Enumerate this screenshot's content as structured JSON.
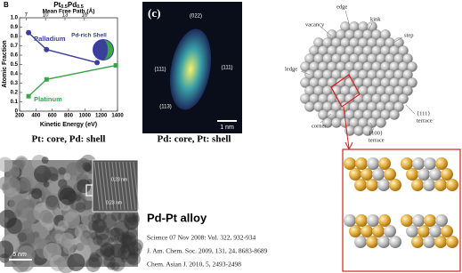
{
  "chart_data": {
    "type": "line",
    "panel": "B",
    "title_parts": [
      "Pt",
      "0.5",
      "Pd",
      "0.5"
    ],
    "x2_label": "Mean Free Path (Å)",
    "x2lim": [
      6,
      21.1
    ],
    "x2ticks": [
      7,
      10,
      13,
      16
    ],
    "xlabel": "Kinetic Energy (eV)",
    "ylabel": "Atomic Fraction",
    "xlim": [
      200,
      1400
    ],
    "xticks": [
      200,
      400,
      600,
      800,
      1000,
      1200,
      1400
    ],
    "ylim": [
      0,
      1
    ],
    "yticks": [
      0,
      0.1,
      0.2,
      0.3,
      0.4,
      0.5,
      0.6,
      0.7,
      0.8,
      0.9,
      {
        "value": 1,
        "label": "1.0"
      }
    ],
    "annotation": "Pd-rich Shell",
    "series": [
      {
        "name": "Palladium",
        "color": "#3b3f9c",
        "marker": "circle",
        "x": [
          310,
          530,
          1150
        ],
        "values": [
          0.84,
          0.66,
          0.52
        ]
      },
      {
        "name": "Platinum",
        "color": "#3aa64a",
        "marker": "square",
        "x": [
          310,
          530,
          1380
        ],
        "values": [
          0.16,
          0.34,
          0.49
        ]
      }
    ]
  },
  "panels": {
    "left_caption": "Pt: core, Pd: shell",
    "hrtem": {
      "label": "(c)",
      "planes": [
        "(022)",
        "(111)",
        "(111)",
        "(113)"
      ],
      "scale": "1 nm",
      "caption": "Pd: core, Pt: shell"
    },
    "nanoparticle": {
      "labels": [
        "edge",
        "kink",
        "vacancy",
        "step",
        "ledge",
        "{111}",
        "terrace",
        "corner",
        "{100}",
        "terrace"
      ]
    },
    "tem": {
      "scale": "5 nm",
      "fringes": [
        "0.23 nm",
        "0.23 nm"
      ],
      "caption": "Pd-Pt alloy",
      "references": [
        "Science  07 Nov 2008: Vol. 322, 932-934",
        "J. Am. Chem. Soc. 2009,  131, 24, 8683-8689",
        "Chem. Asian J. 2010, 5, 2493-2498"
      ]
    }
  }
}
